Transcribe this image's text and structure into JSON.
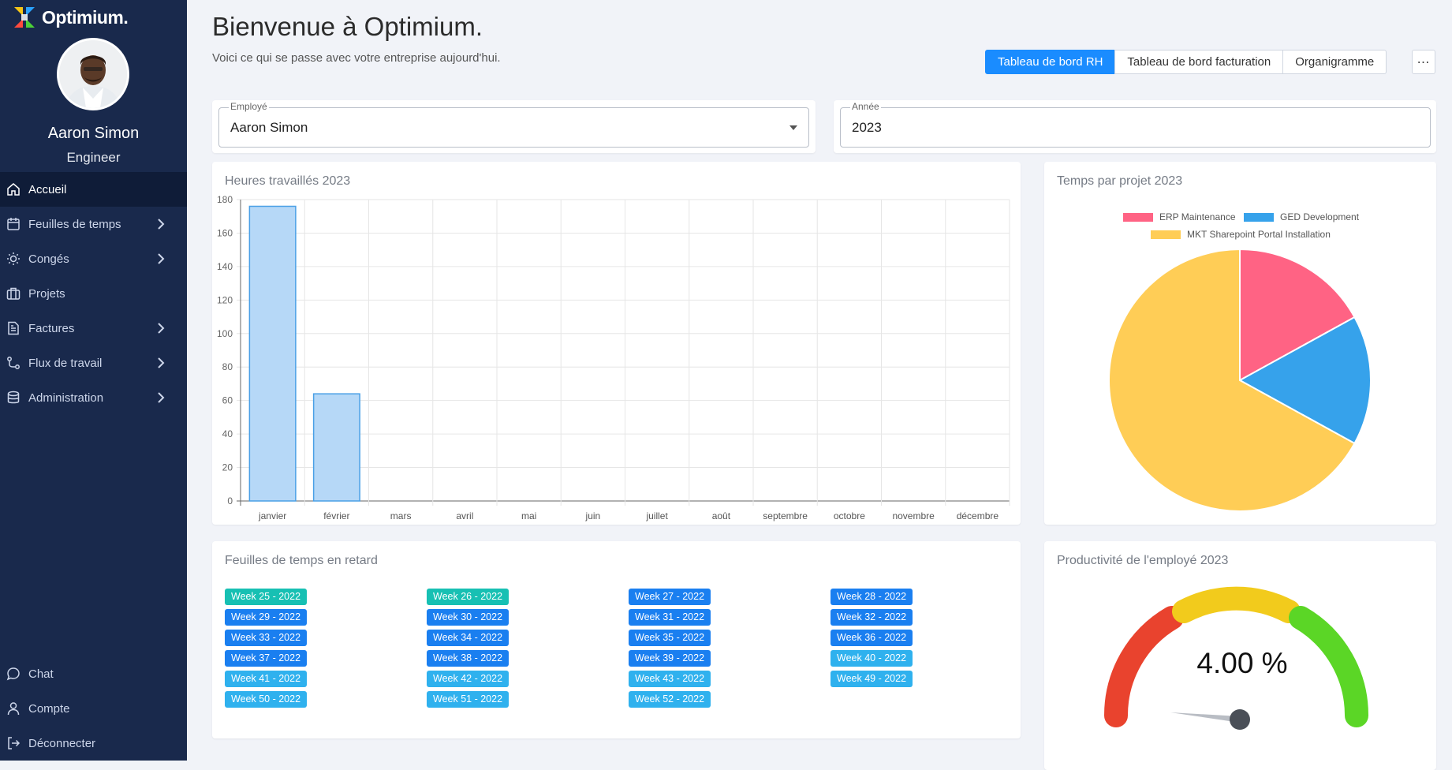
{
  "app": {
    "logo_text": "Optimium."
  },
  "user": {
    "name": "Aaron Simon",
    "role": "Engineer"
  },
  "nav": {
    "items": [
      {
        "label": "Accueil",
        "icon": "home-icon",
        "active": true,
        "submenu": false
      },
      {
        "label": "Feuilles de temps",
        "icon": "calendar-icon",
        "active": false,
        "submenu": true
      },
      {
        "label": "Congés",
        "icon": "sun-icon",
        "active": false,
        "submenu": true
      },
      {
        "label": "Projets",
        "icon": "briefcase-icon",
        "active": false,
        "submenu": false
      },
      {
        "label": "Factures",
        "icon": "document-icon",
        "active": false,
        "submenu": true
      },
      {
        "label": "Flux de travail",
        "icon": "workflow-icon",
        "active": false,
        "submenu": true
      },
      {
        "label": "Administration",
        "icon": "database-icon",
        "active": false,
        "submenu": true
      }
    ],
    "bottom": [
      {
        "label": "Chat",
        "icon": "chat-icon"
      },
      {
        "label": "Compte",
        "icon": "user-icon"
      },
      {
        "label": "Déconnecter",
        "icon": "logout-icon"
      }
    ]
  },
  "header": {
    "title": "Bienvenue à Optimium.",
    "subtitle": "Voici ce qui se passe avec votre entreprise aujourd'hui.",
    "tabs": [
      "Tableau de bord RH",
      "Tableau de bord facturation",
      "Organigramme"
    ],
    "active_tab": "Tableau de bord RH",
    "more_label": "⋯"
  },
  "filters": {
    "employee": {
      "label": "Employé",
      "value": "Aaron Simon"
    },
    "year": {
      "label": "Année",
      "value": "2023"
    }
  },
  "hours_card": {
    "title": "Heures travaillés 2023"
  },
  "project_card": {
    "title": "Temps par projet 2023"
  },
  "late_card": {
    "title": "Feuilles de temps en retard",
    "weeks": [
      {
        "label": "Week 25 - 2022",
        "color": "#17c0b3"
      },
      {
        "label": "Week 26 - 2022",
        "color": "#17c0b3"
      },
      {
        "label": "Week 27 - 2022",
        "color": "#1a7ff0"
      },
      {
        "label": "Week 28 - 2022",
        "color": "#1a7ff0"
      },
      {
        "label": "Week 29 - 2022",
        "color": "#1a7ff0"
      },
      {
        "label": "Week 30 - 2022",
        "color": "#1a7ff0"
      },
      {
        "label": "Week 31 - 2022",
        "color": "#1a7ff0"
      },
      {
        "label": "Week 32 - 2022",
        "color": "#1a7ff0"
      },
      {
        "label": "Week 33 - 2022",
        "color": "#1a7ff0"
      },
      {
        "label": "Week 34 - 2022",
        "color": "#1a7ff0"
      },
      {
        "label": "Week 35 - 2022",
        "color": "#1a7ff0"
      },
      {
        "label": "Week 36 - 2022",
        "color": "#1a7ff0"
      },
      {
        "label": "Week 37 - 2022",
        "color": "#1a7ff0"
      },
      {
        "label": "Week 38 - 2022",
        "color": "#1a7ff0"
      },
      {
        "label": "Week 39 - 2022",
        "color": "#1a7ff0"
      },
      {
        "label": "Week 40 - 2022",
        "color": "#2fb1ee"
      },
      {
        "label": "Week 41 - 2022",
        "color": "#2fb1ee"
      },
      {
        "label": "Week 42 - 2022",
        "color": "#2fb1ee"
      },
      {
        "label": "Week 43 - 2022",
        "color": "#2fb1ee"
      },
      {
        "label": "Week 49 - 2022",
        "color": "#2fb1ee"
      },
      {
        "label": "Week 50 - 2022",
        "color": "#2fb1ee"
      },
      {
        "label": "Week 51 - 2022",
        "color": "#2fb1ee"
      },
      {
        "label": "Week 52 - 2022",
        "color": "#2fb1ee"
      }
    ]
  },
  "productivity_card": {
    "title": "Productivité de l'employé 2023",
    "value_text": "4.00 %",
    "value": 4.0
  },
  "chart_data": [
    {
      "type": "bar",
      "title": "Heures travaillés 2023",
      "categories": [
        "janvier",
        "février",
        "mars",
        "avril",
        "mai",
        "juin",
        "juillet",
        "août",
        "septembre",
        "octobre",
        "novembre",
        "décembre"
      ],
      "values": [
        176,
        64,
        0,
        0,
        0,
        0,
        0,
        0,
        0,
        0,
        0,
        0
      ],
      "ylim": [
        0,
        180
      ],
      "yticks": [
        0,
        20,
        40,
        60,
        80,
        100,
        120,
        140,
        160,
        180
      ],
      "grid": true,
      "bar_color": "#b6d8f7",
      "bar_border": "#4aa0e6"
    },
    {
      "type": "pie",
      "title": "Temps par projet 2023",
      "legend_position": "top",
      "slices": [
        {
          "label": "ERP Maintenance",
          "value": 17,
          "color": "#ff6384"
        },
        {
          "label": "GED Development",
          "value": 16,
          "color": "#36a2eb"
        },
        {
          "label": "MKT Sharepoint Portal Installation",
          "value": 67,
          "color": "#ffcd56"
        }
      ]
    }
  ],
  "colors": {
    "sidebar": "#19294c",
    "accent": "#1a8cff",
    "gauge_red": "#e9432e",
    "gauge_yellow": "#f2cb1c",
    "gauge_green": "#5bd626"
  }
}
